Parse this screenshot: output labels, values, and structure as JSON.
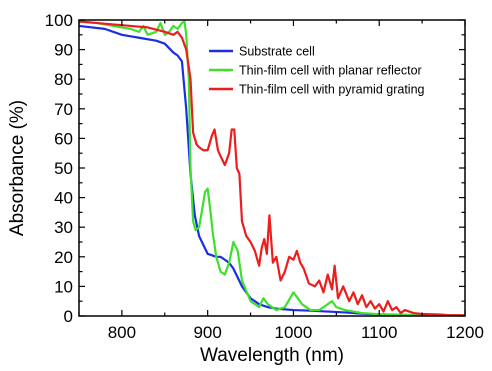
{
  "chart_data": {
    "type": "line",
    "xlabel": "Wavelength (nm)",
    "ylabel": "Absorbance (%)",
    "xlim": [
      750,
      1200
    ],
    "ylim": [
      0,
      100
    ],
    "xticks": [
      800,
      900,
      1000,
      1100,
      1200
    ],
    "yticks": [
      0,
      10,
      20,
      30,
      40,
      50,
      60,
      70,
      80,
      90,
      100
    ],
    "grid": false,
    "legend_position": "top-right",
    "series": [
      {
        "name": "Substrate cell",
        "color": "#1a2ee6",
        "x": [
          750,
          780,
          800,
          820,
          840,
          850,
          860,
          865,
          870,
          875,
          880,
          885,
          890,
          895,
          900,
          910,
          915,
          920,
          925,
          930,
          940,
          950,
          960,
          970,
          980,
          1000,
          1020,
          1040,
          1060,
          1080,
          1100,
          1150,
          1200
        ],
        "y": [
          98,
          97,
          95,
          94,
          93,
          92,
          89,
          88,
          86,
          70,
          48,
          34,
          27,
          24,
          21,
          20,
          20,
          19,
          18,
          16,
          10,
          6,
          4,
          3,
          2.5,
          2,
          1.8,
          1.5,
          1.2,
          0.8,
          0.5,
          0.2,
          0.1
        ]
      },
      {
        "name": "Thin-film cell with planar reflector",
        "color": "#3fe02c",
        "x": [
          750,
          770,
          790,
          810,
          820,
          825,
          830,
          840,
          845,
          850,
          855,
          860,
          865,
          870,
          873,
          875,
          878,
          880,
          883,
          886,
          890,
          893,
          897,
          900,
          903,
          906,
          910,
          915,
          920,
          925,
          930,
          935,
          940,
          950,
          960,
          965,
          970,
          980,
          990,
          1000,
          1010,
          1020,
          1030,
          1040,
          1045,
          1050,
          1060,
          1070,
          1080,
          1100,
          1150,
          1200
        ],
        "y": [
          99.5,
          99,
          98,
          97,
          96,
          98,
          95,
          96,
          99,
          95,
          96,
          98,
          97,
          99,
          99.5,
          95,
          80,
          50,
          32,
          29,
          30,
          35,
          42,
          43,
          36,
          28,
          20,
          15,
          14,
          18,
          25,
          22,
          12,
          5,
          3,
          6,
          4,
          2,
          3,
          8,
          4,
          2,
          2,
          4,
          5,
          3,
          2,
          1.5,
          1,
          0.6,
          0.3,
          0.2
        ]
      },
      {
        "name": "Thin-film cell with pyramid grating",
        "color": "#ec1d1d",
        "x": [
          750,
          770,
          790,
          810,
          830,
          850,
          860,
          865,
          870,
          875,
          880,
          883,
          887,
          890,
          895,
          900,
          905,
          908,
          912,
          915,
          920,
          925,
          928,
          931,
          934,
          937,
          940,
          945,
          950,
          955,
          960,
          963,
          966,
          969,
          972,
          976,
          980,
          985,
          990,
          995,
          1000,
          1004,
          1008,
          1012,
          1018,
          1025,
          1030,
          1035,
          1040,
          1045,
          1048,
          1052,
          1058,
          1065,
          1070,
          1075,
          1080,
          1085,
          1090,
          1095,
          1100,
          1105,
          1110,
          1115,
          1120,
          1125,
          1130,
          1140,
          1150,
          1160,
          1170,
          1180,
          1200
        ],
        "y": [
          99.5,
          99,
          98.5,
          98,
          97.5,
          96,
          95,
          96,
          94,
          90,
          80,
          62,
          58,
          57,
          56,
          56,
          61,
          63,
          56,
          54,
          51,
          55,
          63,
          63,
          50,
          48,
          32,
          27,
          25,
          22,
          17,
          23,
          26,
          21,
          34,
          18,
          20,
          12,
          15,
          20,
          19,
          22,
          18,
          16,
          11,
          10,
          12,
          8,
          14,
          9,
          17,
          6,
          10,
          5,
          8,
          4,
          7,
          3,
          5,
          2.5,
          4,
          1.5,
          5,
          2,
          3,
          1,
          2,
          1,
          0.7,
          0.6,
          0.5,
          0.3,
          0.2
        ]
      }
    ]
  }
}
